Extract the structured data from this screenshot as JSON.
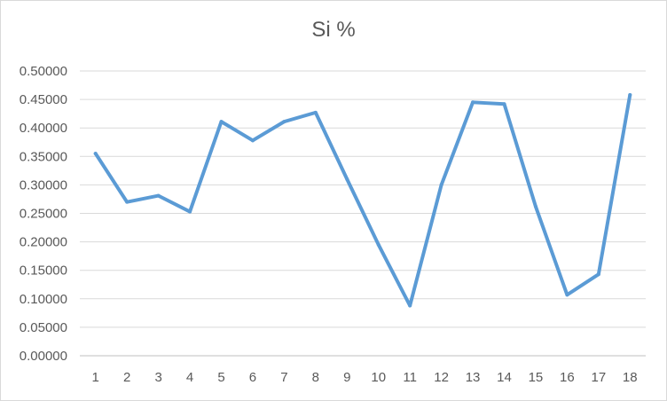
{
  "chart_data": {
    "type": "line",
    "title": "Si %",
    "xlabel": "",
    "ylabel": "",
    "categories": [
      "1",
      "2",
      "3",
      "4",
      "5",
      "6",
      "7",
      "8",
      "9",
      "10",
      "11",
      "12",
      "13",
      "14",
      "15",
      "16",
      "17",
      "18"
    ],
    "series": [
      {
        "values": [
          0.355,
          0.27,
          0.281,
          0.253,
          0.411,
          0.378,
          0.411,
          0.427,
          0.31,
          0.195,
          0.088,
          0.3,
          0.445,
          0.442,
          0.262,
          0.107,
          0.143,
          0.458
        ],
        "color": "#5b9bd5"
      }
    ],
    "ylim": [
      0,
      0.5
    ],
    "yticks": [
      "0.00000",
      "0.05000",
      "0.10000",
      "0.15000",
      "0.20000",
      "0.25000",
      "0.30000",
      "0.35000",
      "0.40000",
      "0.45000",
      "0.50000"
    ],
    "grid": true,
    "legend": "none"
  }
}
